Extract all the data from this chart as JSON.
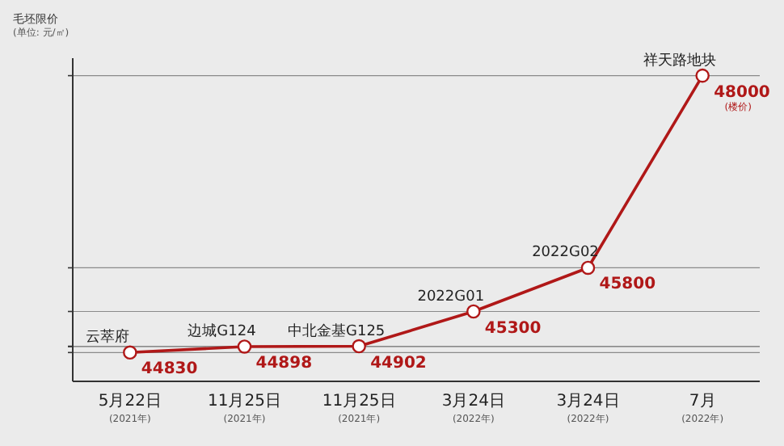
{
  "chart_data": {
    "type": "line",
    "ylabel": "毛坯限价",
    "categories": [
      "5月22日$_{(2021年)}$",
      "11月25日$_{(2021年)}$",
      "11月25日$_{(2021年)}$",
      "3月24日$_{(2022年)}$",
      "3月24日$_{(2022年)}$",
      "7月$_{(2022年)}$"
    ],
    "series": [
      {
        "color": "#b01818",
        "values": [
          44830,
          44898,
          44902,
          45300,
          45800,
          48000
        ]
      }
    ],
    "data_labels": true,
    "ylim": [
      44500,
      48200
    ],
    "yticks": [
      {
        "value": 44830,
        "label": null
      },
      {
        "value": 44898,
        "label": null
      },
      {
        "value": 44902,
        "label": null
      },
      {
        "value": 45300,
        "label": null
      },
      {
        "value": 45800,
        "label": null
      },
      {
        "value": 48000,
        "label": null
      }
    ],
    "tick_labels": "x",
    "grid": "y",
    "marker": "circle",
    "line_style": "solid",
    "annotations": [
      "(单位: 元/㎡)",
      "(楼价)",
      "云萃府",
      "边城G124",
      "中北金基G125",
      "2022G01",
      "2022G02",
      "祥天路地块"
    ]
  }
}
